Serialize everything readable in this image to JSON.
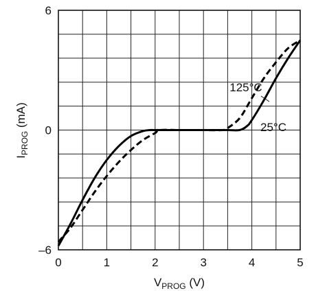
{
  "chart_data": {
    "type": "line",
    "xlabel": "VPROG (V)",
    "ylabel": "IPROG (mA)",
    "xlim": [
      0,
      5
    ],
    "ylim": [
      -6,
      6
    ],
    "x_ticks": [
      "0",
      "1",
      "2",
      "3",
      "4",
      "5"
    ],
    "y_ticks": [
      "–6",
      "0",
      "6"
    ],
    "grid": true,
    "series": [
      {
        "name": "25°C",
        "style": "solid",
        "x": [
          0,
          0.25,
          0.5,
          0.75,
          1.0,
          1.25,
          1.5,
          1.75,
          1.9,
          2.0,
          2.5,
          3.0,
          3.5,
          3.75,
          3.9,
          4.0,
          4.25,
          4.5,
          4.75,
          5.0
        ],
        "y": [
          -5.8,
          -4.7,
          -3.5,
          -2.4,
          -1.5,
          -0.8,
          -0.3,
          -0.05,
          0.0,
          0.0,
          0.0,
          0.0,
          0.0,
          0.0,
          0.2,
          0.5,
          1.5,
          2.6,
          3.6,
          4.5
        ]
      },
      {
        "name": "125°C",
        "style": "dashed",
        "x": [
          0,
          0.25,
          0.5,
          0.75,
          1.0,
          1.25,
          1.5,
          1.75,
          2.0,
          2.1,
          2.5,
          3.0,
          3.4,
          3.5,
          3.75,
          4.0,
          4.25,
          4.5,
          4.75,
          5.0
        ],
        "y": [
          -5.6,
          -4.9,
          -4.0,
          -3.1,
          -2.3,
          -1.6,
          -1.0,
          -0.5,
          -0.15,
          0.0,
          0.0,
          0.0,
          0.0,
          0.1,
          0.6,
          1.6,
          2.6,
          3.4,
          4.1,
          4.5
        ]
      }
    ]
  }
}
